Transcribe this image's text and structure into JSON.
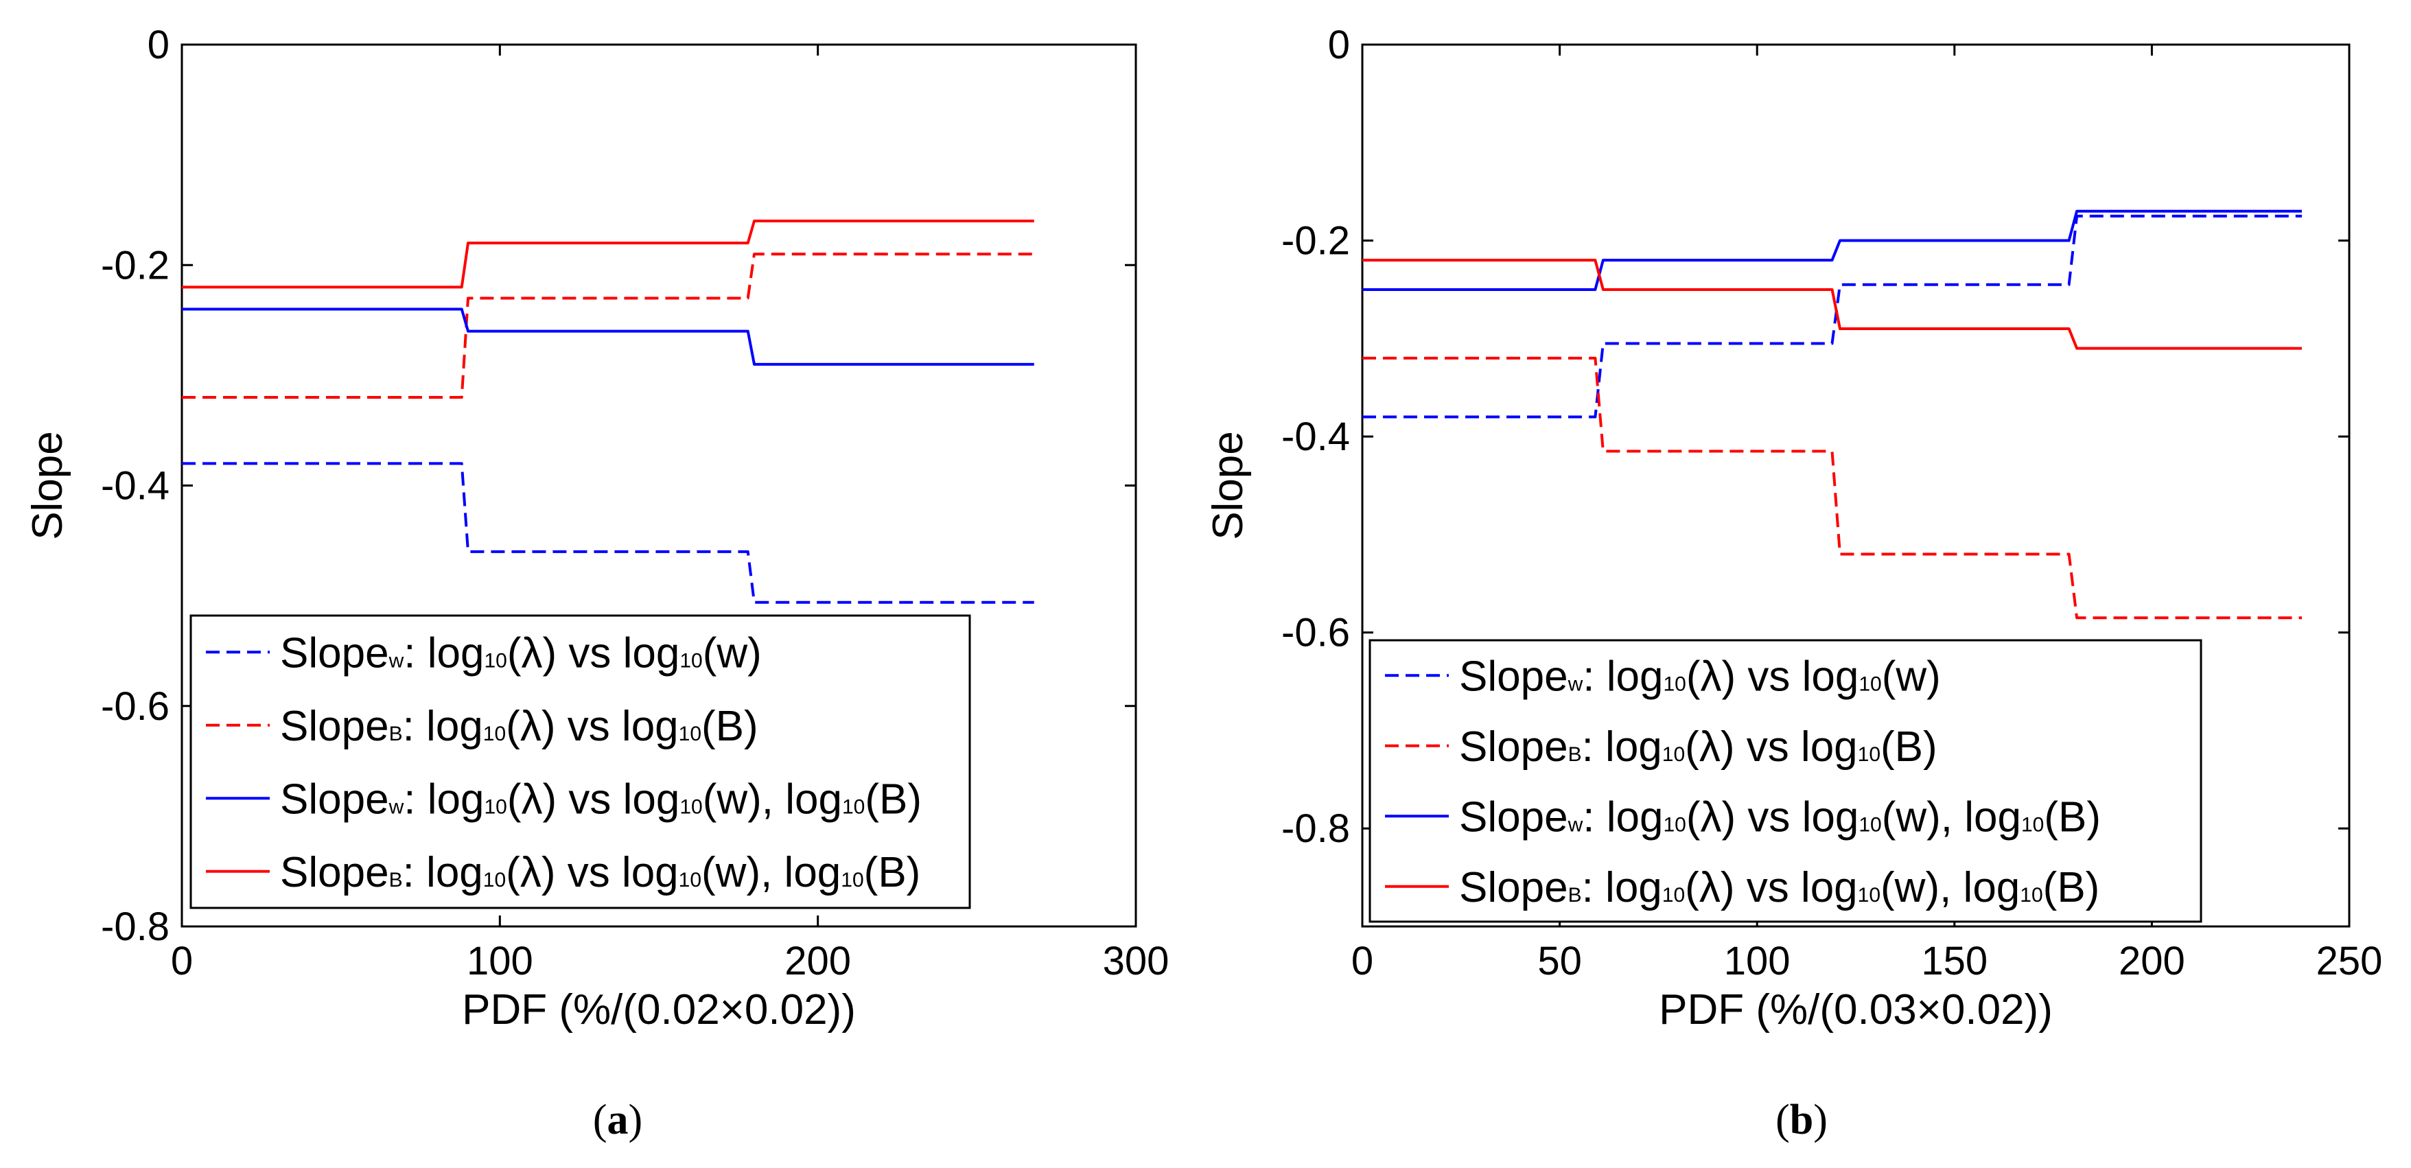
{
  "chart_data": [
    {
      "type": "line",
      "panel_caption": "a",
      "xlabel": "PDF (%/(0.02×0.02))",
      "ylabel": "Slope",
      "xlim": [
        0,
        300
      ],
      "ylim": [
        -0.8,
        0
      ],
      "xticks": [
        "0",
        "100",
        "200",
        "300"
      ],
      "yticks": [
        "0",
        "-0.2",
        "-0.4",
        "-0.6",
        "-0.8"
      ],
      "legend_position": "lower-left",
      "series": [
        {
          "name": "Slopew: log10(λ) vs log10(w)",
          "legend": {
            "pre": "Slope",
            "pre_sub": "w",
            "mid1": ": log",
            "sub1": "10",
            "mid2": "(λ) vs log",
            "sub2": "10",
            "mid3": "(w)",
            "sub3": "",
            "post": ""
          },
          "color": "#0000ff",
          "dash": true,
          "x": [
            0,
            88,
            90,
            178,
            180,
            268
          ],
          "y": [
            -0.38,
            -0.38,
            -0.46,
            -0.46,
            -0.506,
            -0.506
          ]
        },
        {
          "name": "SlopeB: log10(λ) vs log10(B)",
          "legend": {
            "pre": "Slope",
            "pre_sub": "B",
            "mid1": ": log",
            "sub1": "10",
            "mid2": "(λ) vs log",
            "sub2": "10",
            "mid3": "(B)",
            "sub3": "",
            "post": ""
          },
          "color": "#ff0000",
          "dash": true,
          "x": [
            0,
            88,
            90,
            178,
            180,
            268
          ],
          "y": [
            -0.32,
            -0.32,
            -0.23,
            -0.23,
            -0.19,
            -0.19
          ]
        },
        {
          "name": "Slopew: log10(λ) vs log10(w), log10(B)",
          "legend": {
            "pre": "Slope",
            "pre_sub": "w",
            "mid1": ": log",
            "sub1": "10",
            "mid2": "(λ) vs log",
            "sub2": "10",
            "mid3": "(w), log",
            "sub3": "10",
            "post": "(B)"
          },
          "color": "#0000ff",
          "dash": false,
          "x": [
            0,
            88,
            90,
            178,
            180,
            268
          ],
          "y": [
            -0.24,
            -0.24,
            -0.26,
            -0.26,
            -0.29,
            -0.29
          ]
        },
        {
          "name": "SlopeB: log10(λ) vs log10(w), log10(B)",
          "legend": {
            "pre": "Slope",
            "pre_sub": "B",
            "mid1": ": log",
            "sub1": "10",
            "mid2": "(λ) vs log",
            "sub2": "10",
            "mid3": "(w), log",
            "sub3": "10",
            "post": "(B)"
          },
          "color": "#ff0000",
          "dash": false,
          "x": [
            0,
            88,
            90,
            178,
            180,
            268
          ],
          "y": [
            -0.22,
            -0.22,
            -0.18,
            -0.18,
            -0.16,
            -0.16
          ]
        }
      ]
    },
    {
      "type": "line",
      "panel_caption": "b",
      "xlabel": "PDF (%/(0.03×0.02))",
      "ylabel": "Slope",
      "xlim": [
        0,
        250
      ],
      "ylim": [
        -0.9,
        0
      ],
      "xticks": [
        "0",
        "50",
        "100",
        "150",
        "200",
        "250"
      ],
      "yticks": [
        "0",
        "-0.2",
        "-0.4",
        "-0.6",
        "-0.8"
      ],
      "legend_position": "lower-left",
      "series": [
        {
          "name": "Slopew: log10(λ) vs log10(w)",
          "legend": {
            "pre": "Slope",
            "pre_sub": "w",
            "mid1": ": log",
            "sub1": "10",
            "mid2": "(λ) vs log",
            "sub2": "10",
            "mid3": "(w)",
            "sub3": "",
            "post": ""
          },
          "color": "#0000ff",
          "dash": true,
          "x": [
            0,
            59,
            61,
            119,
            121,
            179,
            181,
            238
          ],
          "y": [
            -0.38,
            -0.38,
            -0.305,
            -0.305,
            -0.245,
            -0.245,
            -0.175,
            -0.175
          ]
        },
        {
          "name": "SlopeB: log10(λ) vs log10(B)",
          "legend": {
            "pre": "Slope",
            "pre_sub": "B",
            "mid1": ": log",
            "sub1": "10",
            "mid2": "(λ) vs log",
            "sub2": "10",
            "mid3": "(B)",
            "sub3": "",
            "post": ""
          },
          "color": "#ff0000",
          "dash": true,
          "x": [
            0,
            59,
            61,
            119,
            121,
            179,
            181,
            238
          ],
          "y": [
            -0.32,
            -0.32,
            -0.415,
            -0.415,
            -0.52,
            -0.52,
            -0.585,
            -0.585
          ]
        },
        {
          "name": "Slopew: log10(λ) vs log10(w), log10(B)",
          "legend": {
            "pre": "Slope",
            "pre_sub": "w",
            "mid1": ": log",
            "sub1": "10",
            "mid2": "(λ) vs log",
            "sub2": "10",
            "mid3": "(w), log",
            "sub3": "10",
            "post": "(B)"
          },
          "color": "#0000ff",
          "dash": false,
          "x": [
            0,
            59,
            61,
            119,
            121,
            179,
            181,
            238
          ],
          "y": [
            -0.25,
            -0.25,
            -0.22,
            -0.22,
            -0.2,
            -0.2,
            -0.17,
            -0.17
          ]
        },
        {
          "name": "SlopeB: log10(λ) vs log10(w), log10(B)",
          "legend": {
            "pre": "Slope",
            "pre_sub": "B",
            "mid1": ": log",
            "sub1": "10",
            "mid2": "(λ) vs log",
            "sub2": "10",
            "mid3": "(w), log",
            "sub3": "10",
            "post": "(B)"
          },
          "color": "#ff0000",
          "dash": false,
          "x": [
            0,
            59,
            61,
            119,
            121,
            179,
            181,
            238
          ],
          "y": [
            -0.22,
            -0.22,
            -0.25,
            -0.25,
            -0.29,
            -0.29,
            -0.31,
            -0.31
          ]
        }
      ]
    }
  ]
}
